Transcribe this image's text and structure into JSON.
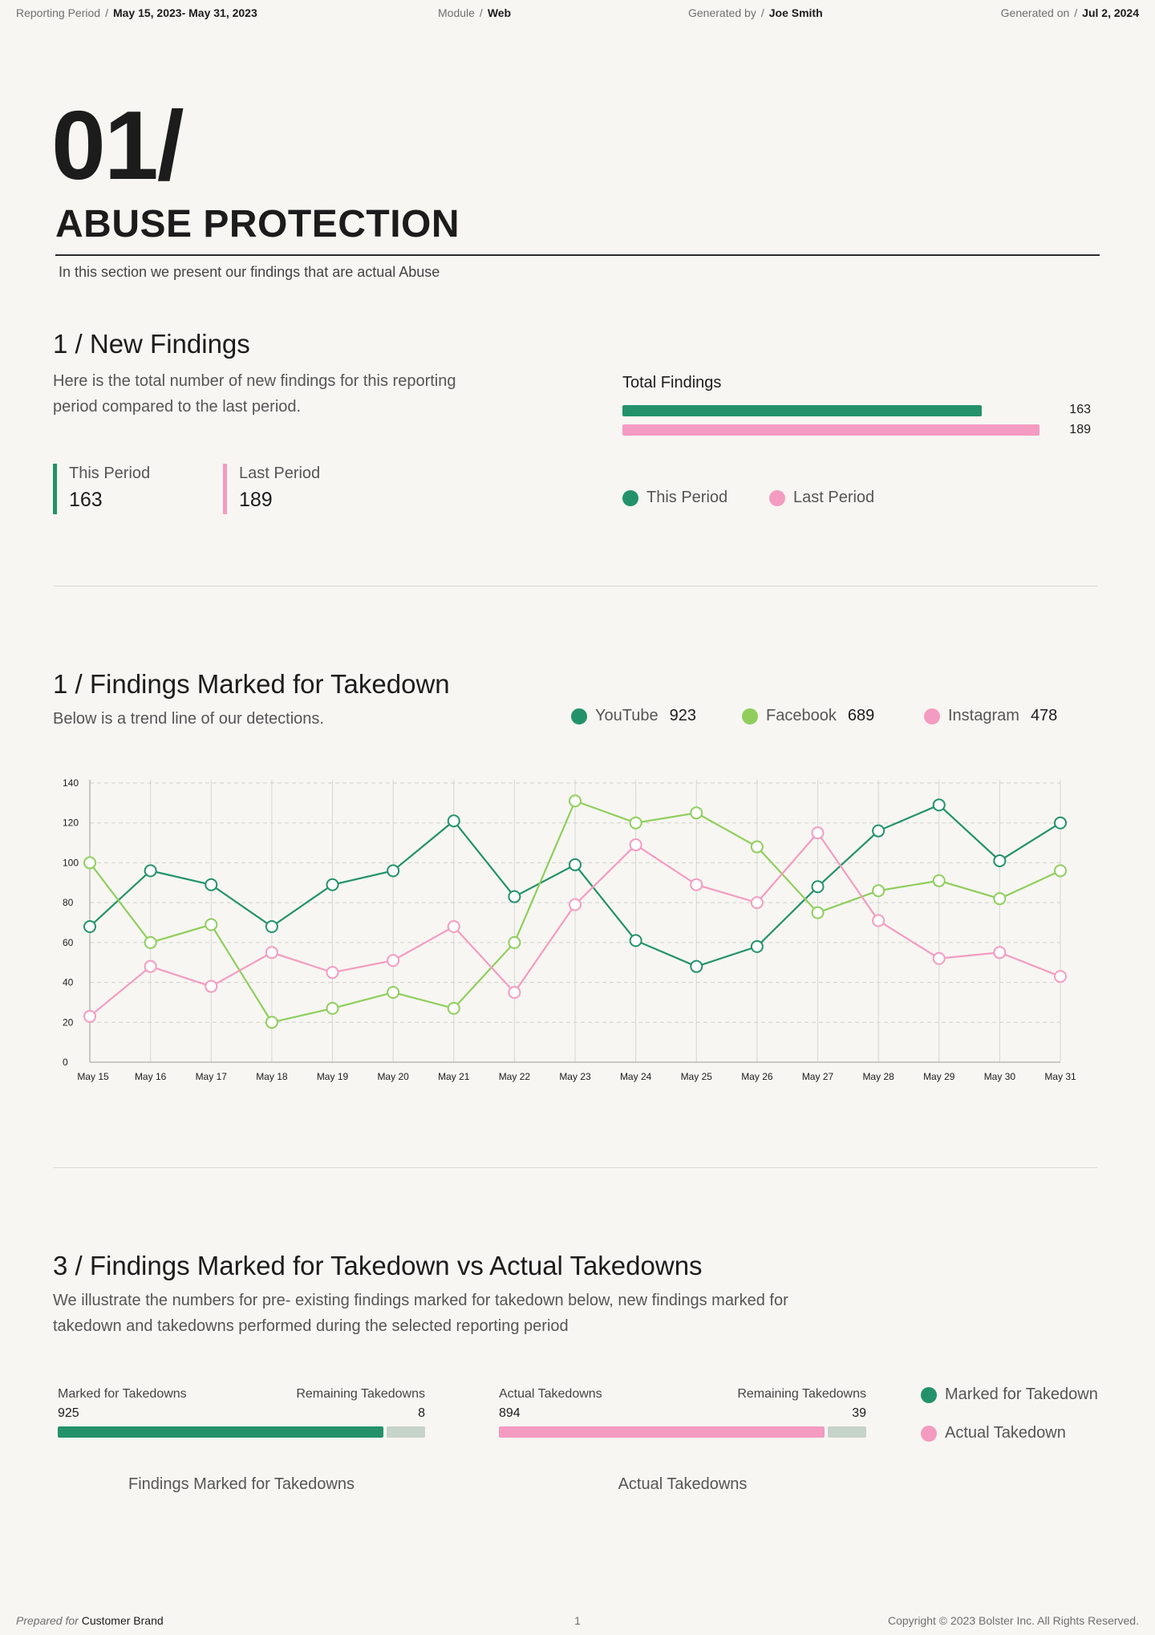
{
  "header": {
    "reporting_period_label": "Reporting Period",
    "reporting_period_value": "May 15, 2023- May 31, 2023",
    "module_label": "Module",
    "module_value": "Web",
    "generated_by_label": "Generated by",
    "generated_by_value": "Joe Smith",
    "generated_on_label": "Generated on",
    "generated_on_value": "Jul 2, 2024",
    "separator": "/"
  },
  "section": {
    "number": "01/",
    "title": "ABUSE PROTECTION",
    "intro": "In this section we present our findings that are actual Abuse"
  },
  "new_findings": {
    "title": "1 / New Findings",
    "description": "Here is the total number of new findings for this reporting period compared to the last period.",
    "this_period_label": "This Period",
    "this_period_value": "163",
    "last_period_label": "Last Period",
    "last_period_value": "189",
    "chart_title": "Total Findings",
    "legend_this": "This Period",
    "legend_last": "Last Period"
  },
  "takedown": {
    "title": "1 / Findings Marked for Takedown",
    "description": "Below is a trend line of our detections.",
    "legend": [
      {
        "name": "YouTube",
        "value": "923",
        "color": "#23926a"
      },
      {
        "name": "Facebook",
        "value": "689",
        "color": "#8fce5c"
      },
      {
        "name": "Instagram",
        "value": "478",
        "color": "#f49bc1"
      }
    ]
  },
  "vs": {
    "title": "3 / Findings Marked for Takedown vs Actual Takedowns",
    "description": "We illustrate the numbers for pre- existing findings marked for takedown below, new findings marked for takedown and takedowns performed during the selected reporting period",
    "left": {
      "label_a": "Marked for Takedowns",
      "value_a": "925",
      "label_b": "Remaining Takedowns",
      "value_b": "8",
      "caption": "Findings Marked for Takedowns"
    },
    "right": {
      "label_a": "Actual Takedowns",
      "value_a": "894",
      "label_b": "Remaining Takedowns",
      "value_b": "39",
      "caption": "Actual Takedowns"
    },
    "legend_marked": "Marked for Takedown",
    "legend_actual": "Actual Takedown"
  },
  "footer": {
    "prepared_for_label": "Prepared for",
    "prepared_for_value": "Customer Brand",
    "page_number": "1",
    "copyright": "Copyright © 2023 Bolster Inc. All Rights Reserved."
  },
  "colors": {
    "green": "#23926a",
    "lightgreen": "#8fce5c",
    "pink": "#f49bc1",
    "remaining": "#c6d3c8"
  },
  "chart_data": [
    {
      "type": "bar",
      "orientation": "horizontal",
      "title": "Total Findings",
      "series": [
        {
          "name": "This Period",
          "values": [
            163
          ]
        },
        {
          "name": "Last Period",
          "values": [
            189
          ]
        }
      ],
      "data_labels": [
        "163",
        "189"
      ]
    },
    {
      "type": "line",
      "categories": [
        "May 15",
        "May 16",
        "May 17",
        "May 18",
        "May 19",
        "May 20",
        "May 21",
        "May 22",
        "May 23",
        "May 24",
        "May 25",
        "May 26",
        "May 27",
        "May 28",
        "May 29",
        "May 30",
        "May 31"
      ],
      "ylim": [
        0,
        140
      ],
      "yticks": [
        "0",
        "20",
        "40",
        "60",
        "80",
        "100",
        "120",
        "140"
      ],
      "grid": true,
      "series": [
        {
          "name": "YouTube",
          "values": [
            68,
            96,
            89,
            68,
            89,
            96,
            121,
            83,
            99,
            61,
            48,
            58,
            88,
            116,
            129,
            101,
            120
          ]
        },
        {
          "name": "Facebook",
          "values": [
            100,
            60,
            69,
            20,
            27,
            35,
            27,
            60,
            131,
            120,
            125,
            108,
            75,
            86,
            91,
            82,
            96
          ]
        },
        {
          "name": "Instagram",
          "values": [
            23,
            48,
            38,
            55,
            45,
            51,
            68,
            35,
            79,
            109,
            89,
            80,
            115,
            71,
            52,
            55,
            43
          ]
        }
      ]
    },
    {
      "type": "bar",
      "orientation": "horizontal-stacked",
      "series": [
        {
          "name": "Marked for Takedowns",
          "values": [
            925
          ]
        },
        {
          "name": "Remaining Takedowns",
          "values": [
            8
          ]
        }
      ]
    },
    {
      "type": "bar",
      "orientation": "horizontal-stacked",
      "series": [
        {
          "name": "Actual Takedowns",
          "values": [
            894
          ]
        },
        {
          "name": "Remaining Takedowns",
          "values": [
            39
          ]
        }
      ]
    }
  ]
}
